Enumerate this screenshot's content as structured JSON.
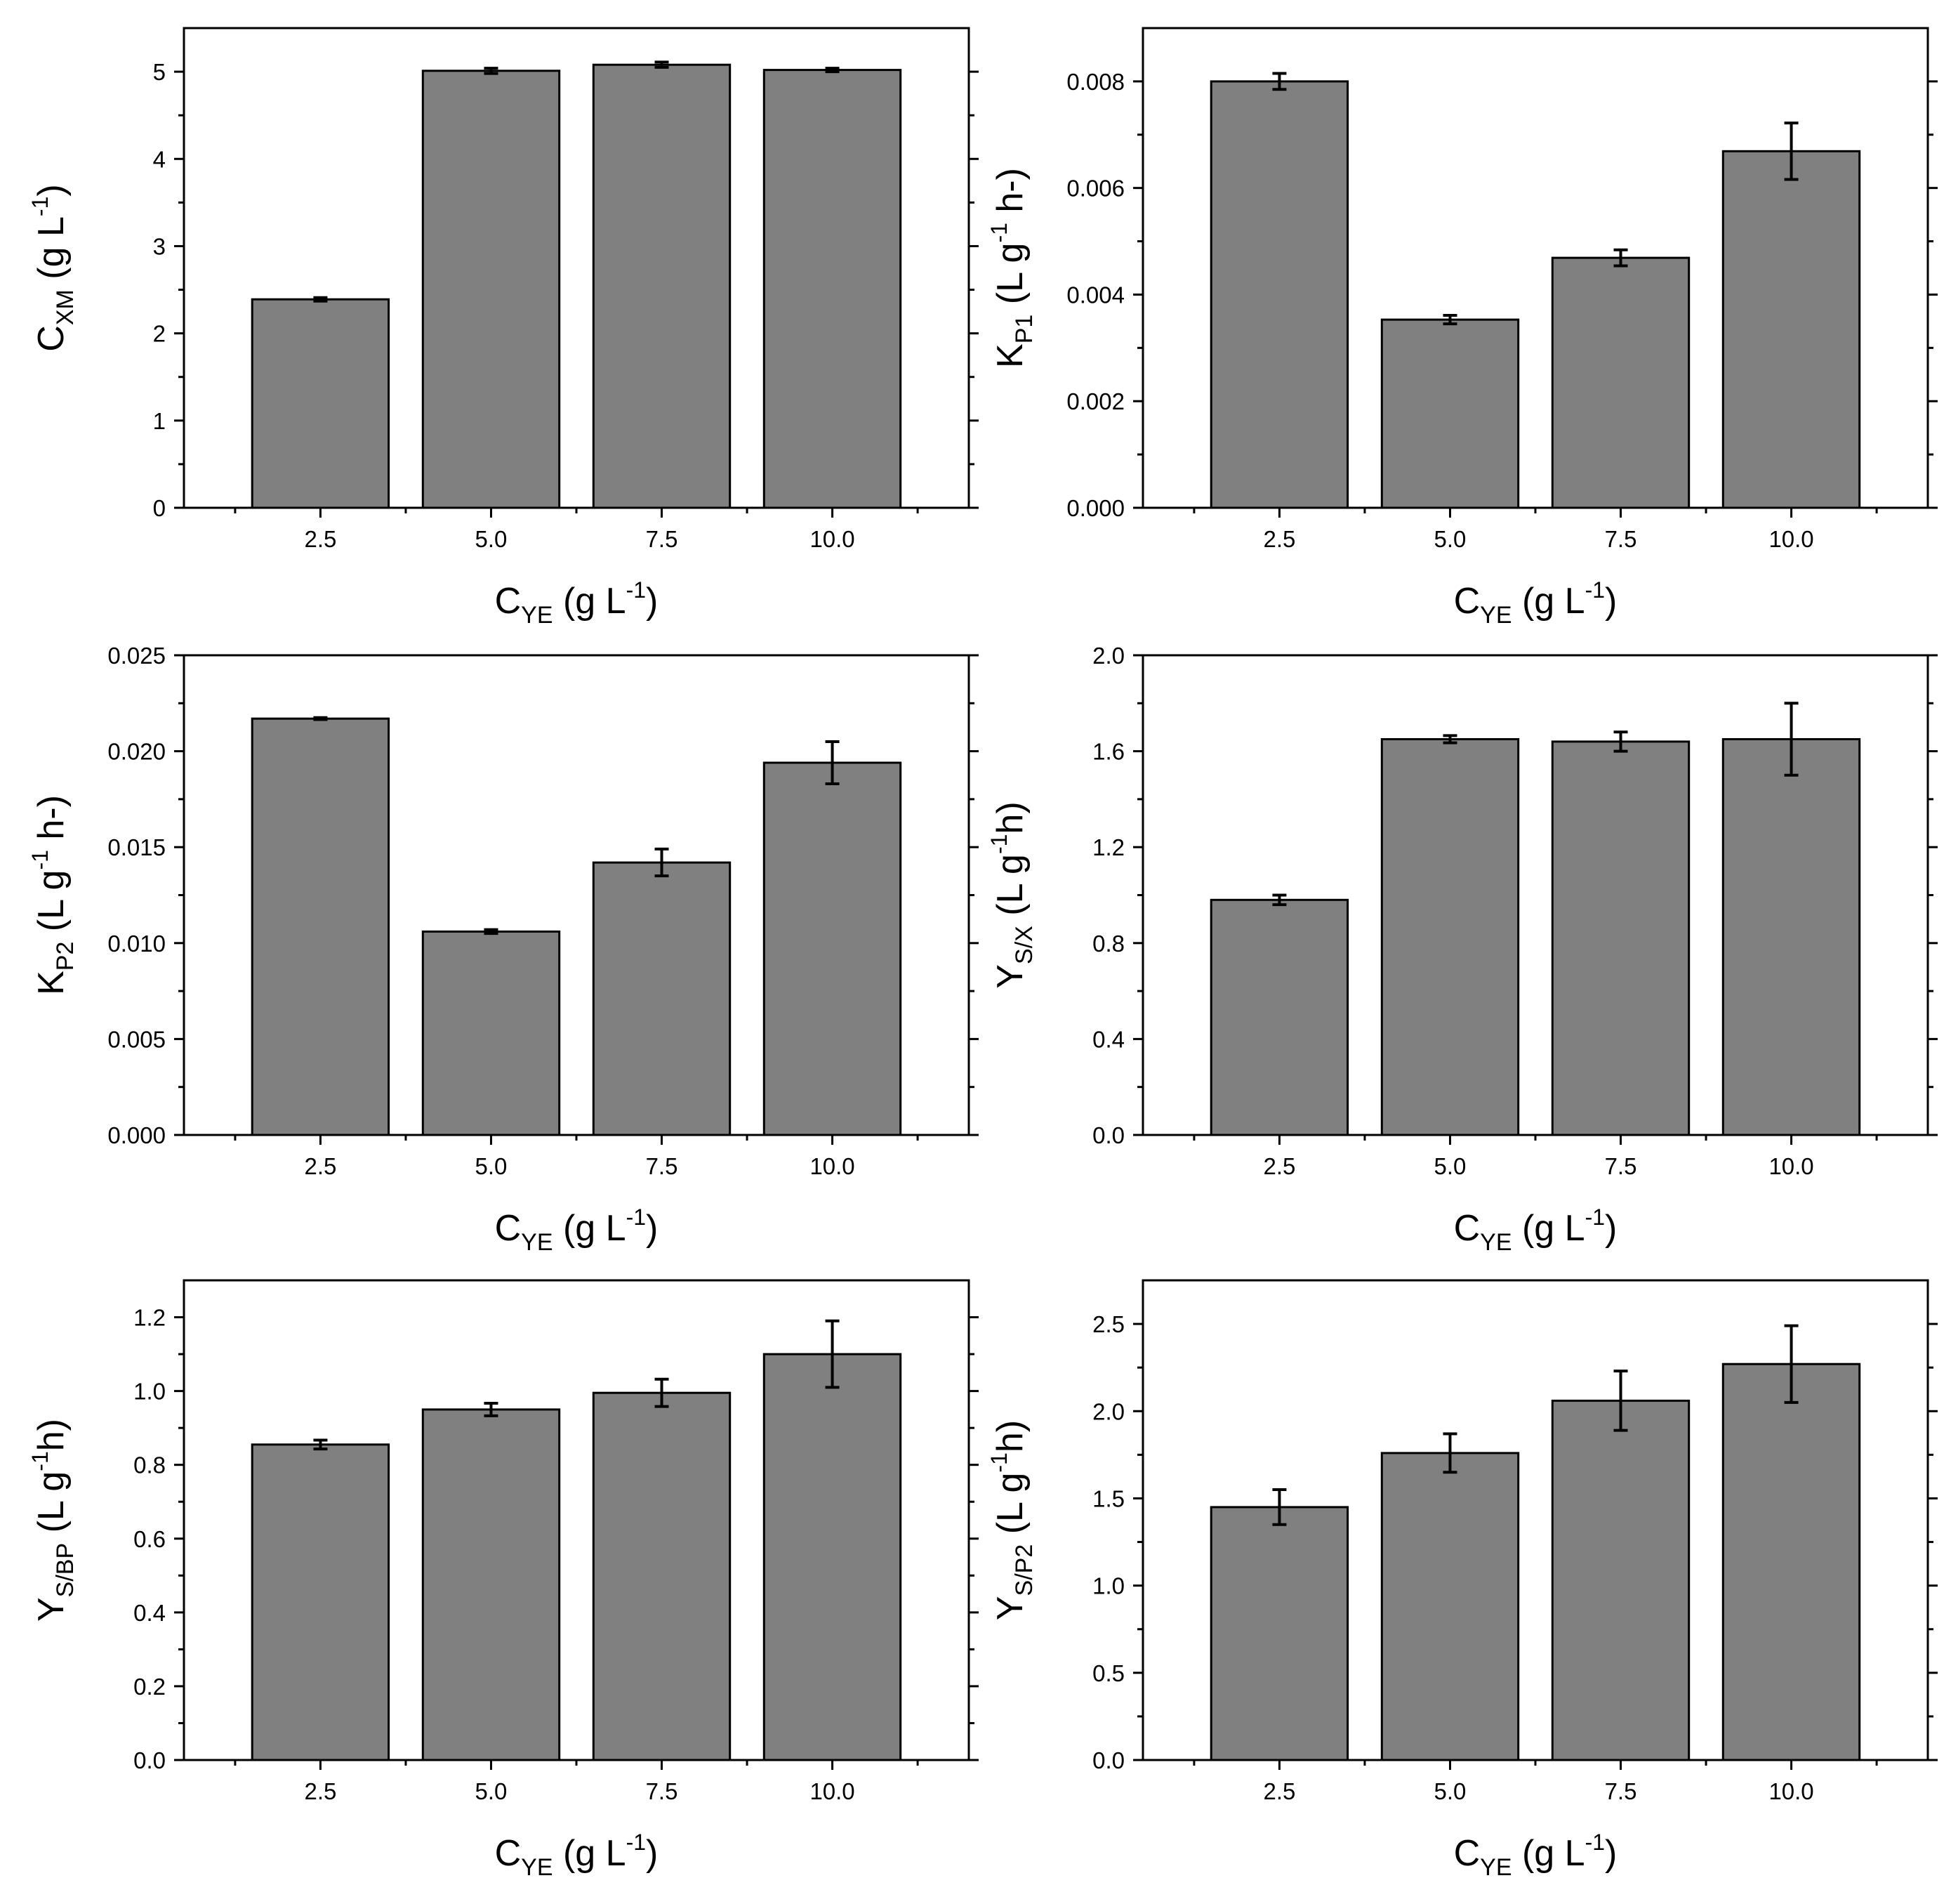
{
  "colors": {
    "bar_fill": "#808080",
    "stroke": "#000000",
    "background": "#ffffff"
  },
  "x_axis": {
    "main": "C",
    "sub": "YE",
    "rest": " (g L",
    "sup": "-1",
    "close": ")"
  },
  "chart_data": [
    {
      "type": "bar",
      "id": "cxm",
      "categories": [
        "2.5",
        "5.0",
        "7.5",
        "10.0"
      ],
      "values": [
        2.39,
        5.01,
        5.08,
        5.02
      ],
      "errors": [
        0.02,
        0.03,
        0.03,
        0.02
      ],
      "ylim": [
        0,
        5.5
      ],
      "yticks": [
        0,
        1,
        2,
        3,
        4,
        5
      ],
      "ytick_labels": [
        "0",
        "1",
        "2",
        "3",
        "4",
        "5"
      ],
      "yminor_step": 0.5,
      "xlabel": "C_YE (g L^-1)",
      "ylabel": {
        "main": "C",
        "sub": "XM",
        "rest": " (g L",
        "sup": "-1",
        "close": ")"
      }
    },
    {
      "type": "bar",
      "id": "kp1",
      "categories": [
        "2.5",
        "5.0",
        "7.5",
        "10.0"
      ],
      "values": [
        0.008,
        0.00353,
        0.00469,
        0.00669
      ],
      "errors": [
        0.00015,
        8e-05,
        0.00015,
        0.00053
      ],
      "ylim": [
        0,
        0.009
      ],
      "yticks": [
        0,
        0.002,
        0.004,
        0.006,
        0.008
      ],
      "ytick_labels": [
        "0.000",
        "0.002",
        "0.004",
        "0.006",
        "0.008"
      ],
      "yminor_step": 0.001,
      "xlabel": "C_YE (g L^-1)",
      "ylabel": {
        "main": "K",
        "sub": "P1",
        "rest": " (L g",
        "sup": "-1",
        "close": " h-)"
      }
    },
    {
      "type": "bar",
      "id": "kp2",
      "categories": [
        "2.5",
        "5.0",
        "7.5",
        "10.0"
      ],
      "values": [
        0.0217,
        0.0106,
        0.0142,
        0.0194
      ],
      "errors": [
        5e-05,
        0.0001,
        0.0007,
        0.0011
      ],
      "ylim": [
        0,
        0.025
      ],
      "yticks": [
        0,
        0.005,
        0.01,
        0.015,
        0.02,
        0.025
      ],
      "ytick_labels": [
        "0.000",
        "0.005",
        "0.010",
        "0.015",
        "0.020",
        "0.025"
      ],
      "yminor_step": 0.0025,
      "xlabel": "C_YE (g L^-1)",
      "ylabel": {
        "main": "K",
        "sub": "P2",
        "rest": " (L g",
        "sup": "-1",
        "close": " h-)"
      }
    },
    {
      "type": "bar",
      "id": "ysx",
      "categories": [
        "2.5",
        "5.0",
        "7.5",
        "10.0"
      ],
      "values": [
        0.98,
        1.65,
        1.64,
        1.65
      ],
      "errors": [
        0.02,
        0.015,
        0.04,
        0.15
      ],
      "ylim": [
        0,
        2.0
      ],
      "yticks": [
        0,
        0.4,
        0.8,
        1.2,
        1.6,
        2.0
      ],
      "ytick_labels": [
        "0.0",
        "0.4",
        "0.8",
        "1.2",
        "1.6",
        "2.0"
      ],
      "yminor_step": 0.2,
      "xlabel": "C_YE (g L^-1)",
      "ylabel": {
        "main": "Y",
        "sub": "S/X",
        "rest": " (L g",
        "sup": "-1",
        "close": "h)"
      }
    },
    {
      "type": "bar",
      "id": "ysbp",
      "categories": [
        "2.5",
        "5.0",
        "7.5",
        "10.0"
      ],
      "values": [
        0.855,
        0.95,
        0.995,
        1.1
      ],
      "errors": [
        0.012,
        0.017,
        0.037,
        0.09
      ],
      "ylim": [
        0,
        1.3
      ],
      "yticks": [
        0,
        0.2,
        0.4,
        0.6,
        0.8,
        1.0,
        1.2
      ],
      "ytick_labels": [
        "0.0",
        "0.2",
        "0.4",
        "0.6",
        "0.8",
        "1.0",
        "1.2"
      ],
      "yminor_step": 0.1,
      "xlabel": "C_YE (g L^-1)",
      "ylabel": {
        "main": "Y",
        "sub": "S/BP",
        "rest": " (L g",
        "sup": "-1",
        "close": "h)"
      }
    },
    {
      "type": "bar",
      "id": "ysp2",
      "categories": [
        "2.5",
        "5.0",
        "7.5",
        "10.0"
      ],
      "values": [
        1.45,
        1.76,
        2.06,
        2.27
      ],
      "errors": [
        0.1,
        0.11,
        0.17,
        0.22
      ],
      "ylim": [
        0,
        2.75
      ],
      "yticks": [
        0,
        0.5,
        1.0,
        1.5,
        2.0,
        2.5
      ],
      "ytick_labels": [
        "0.0",
        "0.5",
        "1.0",
        "1.5",
        "2.0",
        "2.5"
      ],
      "yminor_step": 0.25,
      "xlabel": "C_YE (g L^-1)",
      "ylabel": {
        "main": "Y",
        "sub": "S/P2",
        "rest": " (L g",
        "sup": "-1",
        "close": "h)"
      }
    }
  ]
}
